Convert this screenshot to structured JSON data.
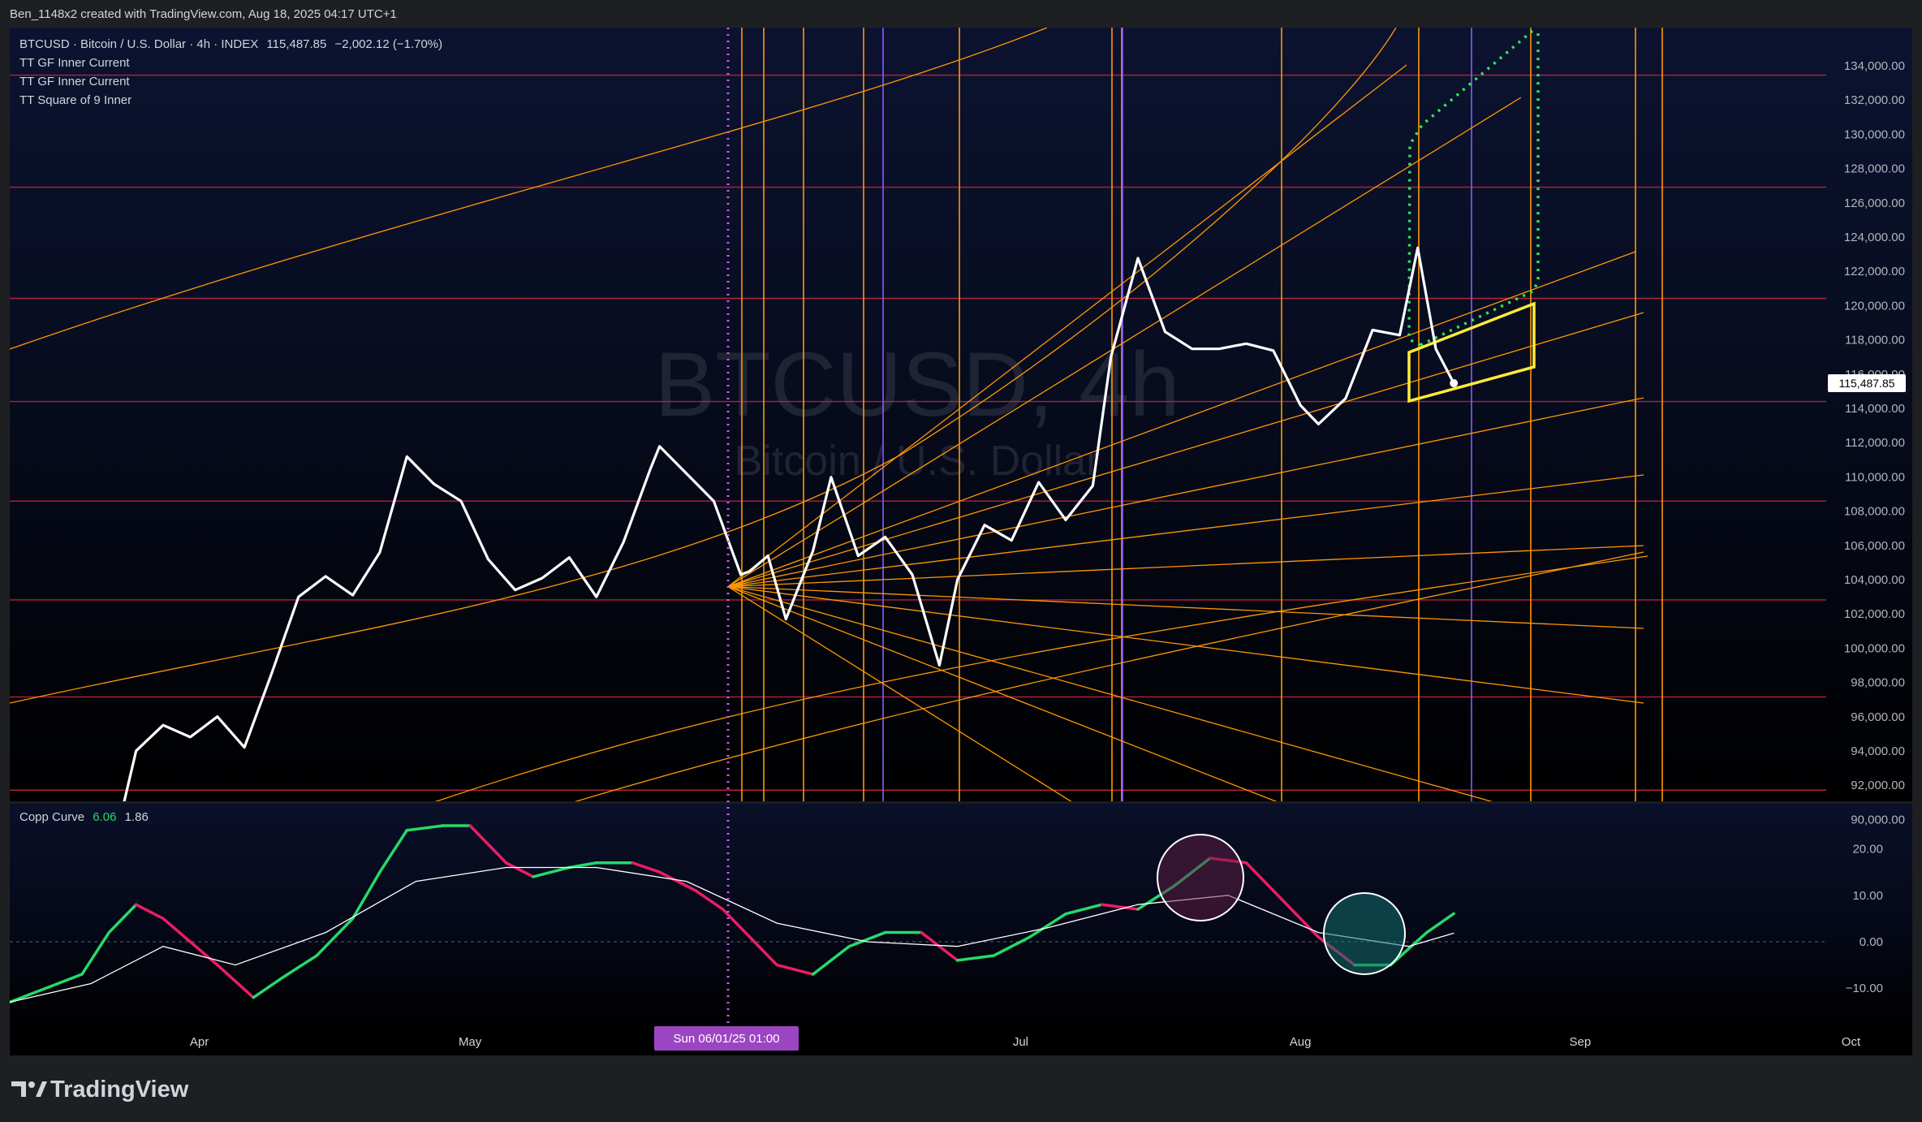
{
  "header": {
    "attribution": "Ben_1148x2 created with TradingView.com, Aug 18, 2025 04:17 UTC+1"
  },
  "main_legend": {
    "symbol_line": "BTCUSD · Bitcoin / U.S. Dollar · 4h · INDEX",
    "price": "115,487.85",
    "change": "−2,002.12 (−1.70%)",
    "indicators": [
      "TT GF Inner Current",
      "TT GF Inner Current",
      "TT Square of 9 Inner"
    ]
  },
  "watermark": {
    "title": "BTCUSD, 4h",
    "subtitle": "Bitcoin / U.S. Dollar"
  },
  "osc_legend": {
    "name": "Copp Curve",
    "value1": "6.06",
    "value2": "1.86"
  },
  "time_axis": {
    "labels": [
      "Apr",
      "May",
      "Jul",
      "Aug",
      "Sep",
      "Oct"
    ],
    "crosshair_label": "Sun 06/01/25   01:00"
  },
  "price_axis": {
    "labels": [
      "134,000.00",
      "132,000.00",
      "130,000.00",
      "128,000.00",
      "126,000.00",
      "124,000.00",
      "122,000.00",
      "120,000.00",
      "118,000.00",
      "116,000.00",
      "114,000.00",
      "112,000.00",
      "110,000.00",
      "108,000.00",
      "106,000.00",
      "104,000.00",
      "102,000.00",
      "100,000.00",
      "98,000.00",
      "96,000.00",
      "94,000.00",
      "92,000.00",
      "90,000.00"
    ],
    "last_price_label": "115,487.85"
  },
  "osc_axis": {
    "labels": [
      "20.00",
      "10.00",
      "0.00",
      "−10.00"
    ]
  },
  "brand": {
    "name": "TradingView"
  },
  "colors": {
    "price_line": "#ffffff",
    "fib_lines": "#ff9800",
    "red_levels": "#b2223a",
    "purple_lines": "#8c5cff",
    "crosshair": "#d05cf0",
    "copp_up": "#26d96a",
    "copp_down": "#e91e63",
    "signal": "#ffffff",
    "target_box": "#ffeb3b",
    "projection": "#2ee65a"
  },
  "chart_data": [
    {
      "type": "line",
      "title": "BTCUSD, 4h",
      "ylim": [
        89000,
        134800
      ],
      "series": [
        {
          "name": "BTCUSD",
          "x": [
            "2025-03-23",
            "2025-03-25",
            "2025-03-28",
            "2025-03-31",
            "2025-04-03",
            "2025-04-06",
            "2025-04-09",
            "2025-04-12",
            "2025-04-15",
            "2025-04-18",
            "2025-04-21",
            "2025-04-24",
            "2025-04-27",
            "2025-04-30",
            "2025-05-03",
            "2025-05-06",
            "2025-05-09",
            "2025-05-12",
            "2025-05-15",
            "2025-05-18",
            "2025-05-21",
            "2025-05-22",
            "2025-05-25",
            "2025-05-28",
            "2025-05-31",
            "2025-06-01",
            "2025-06-03",
            "2025-06-05",
            "2025-06-08",
            "2025-06-10",
            "2025-06-13",
            "2025-06-16",
            "2025-06-19",
            "2025-06-22",
            "2025-06-24",
            "2025-06-27",
            "2025-06-30",
            "2025-07-03",
            "2025-07-06",
            "2025-07-09",
            "2025-07-11",
            "2025-07-14",
            "2025-07-17",
            "2025-07-20",
            "2025-07-23",
            "2025-07-26",
            "2025-07-29",
            "2025-08-01",
            "2025-08-03",
            "2025-08-06",
            "2025-08-09",
            "2025-08-12",
            "2025-08-14",
            "2025-08-16",
            "2025-08-18"
          ],
          "values": [
            89500,
            94000,
            95500,
            94800,
            96000,
            94200,
            98500,
            103000,
            104200,
            103100,
            105600,
            111200,
            109600,
            108600,
            105200,
            103400,
            104100,
            105300,
            103000,
            106200,
            110500,
            111800,
            110200,
            108600,
            104300,
            104500,
            105400,
            101700,
            105700,
            110000,
            105400,
            106500,
            104300,
            99000,
            104000,
            107200,
            106300,
            109700,
            107500,
            109500,
            117000,
            122800,
            118500,
            117500,
            117500,
            117800,
            117400,
            114200,
            113100,
            114600,
            118600,
            118300,
            123400,
            117500,
            115487.85
          ]
        }
      ]
    },
    {
      "type": "line",
      "title": "Copp Curve",
      "ylim": [
        -15,
        27
      ],
      "series": [
        {
          "name": "Copp Curve",
          "x": [
            "2025-03-11",
            "2025-03-15",
            "2025-03-19",
            "2025-03-22",
            "2025-03-25",
            "2025-03-28",
            "2025-03-31",
            "2025-04-03",
            "2025-04-07",
            "2025-04-10",
            "2025-04-14",
            "2025-04-18",
            "2025-04-21",
            "2025-04-24",
            "2025-04-28",
            "2025-05-01",
            "2025-05-05",
            "2025-05-08",
            "2025-05-12",
            "2025-05-15",
            "2025-05-19",
            "2025-05-22",
            "2025-05-26",
            "2025-05-29",
            "2025-06-01",
            "2025-06-04",
            "2025-06-08",
            "2025-06-12",
            "2025-06-16",
            "2025-06-20",
            "2025-06-24",
            "2025-06-28",
            "2025-07-02",
            "2025-07-06",
            "2025-07-10",
            "2025-07-14",
            "2025-07-18",
            "2025-07-22",
            "2025-07-26",
            "2025-07-30",
            "2025-08-03",
            "2025-08-07",
            "2025-08-11",
            "2025-08-15",
            "2025-08-18"
          ],
          "values": [
            -13,
            -10,
            -7,
            2,
            8,
            5,
            0,
            -5,
            -12,
            -8,
            -3,
            5,
            15,
            24,
            25,
            25,
            17,
            14,
            16,
            17,
            17,
            15,
            11,
            7,
            1,
            -5,
            -7,
            -1,
            2,
            2,
            -4,
            -3,
            1,
            6,
            8,
            7,
            12,
            18,
            17,
            9,
            1,
            -5,
            -5,
            2,
            6.06
          ]
        },
        {
          "name": "Signal",
          "x": [
            "2025-03-11",
            "2025-03-20",
            "2025-03-28",
            "2025-04-05",
            "2025-04-15",
            "2025-04-25",
            "2025-05-05",
            "2025-05-15",
            "2025-05-25",
            "2025-06-04",
            "2025-06-14",
            "2025-06-24",
            "2025-07-04",
            "2025-07-14",
            "2025-07-24",
            "2025-08-03",
            "2025-08-13",
            "2025-08-18"
          ],
          "values": [
            -13,
            -9,
            -1,
            -5,
            2,
            13,
            16,
            16,
            13,
            4,
            0,
            -1,
            3,
            8,
            10,
            2,
            -1,
            1.86
          ]
        }
      ]
    }
  ]
}
